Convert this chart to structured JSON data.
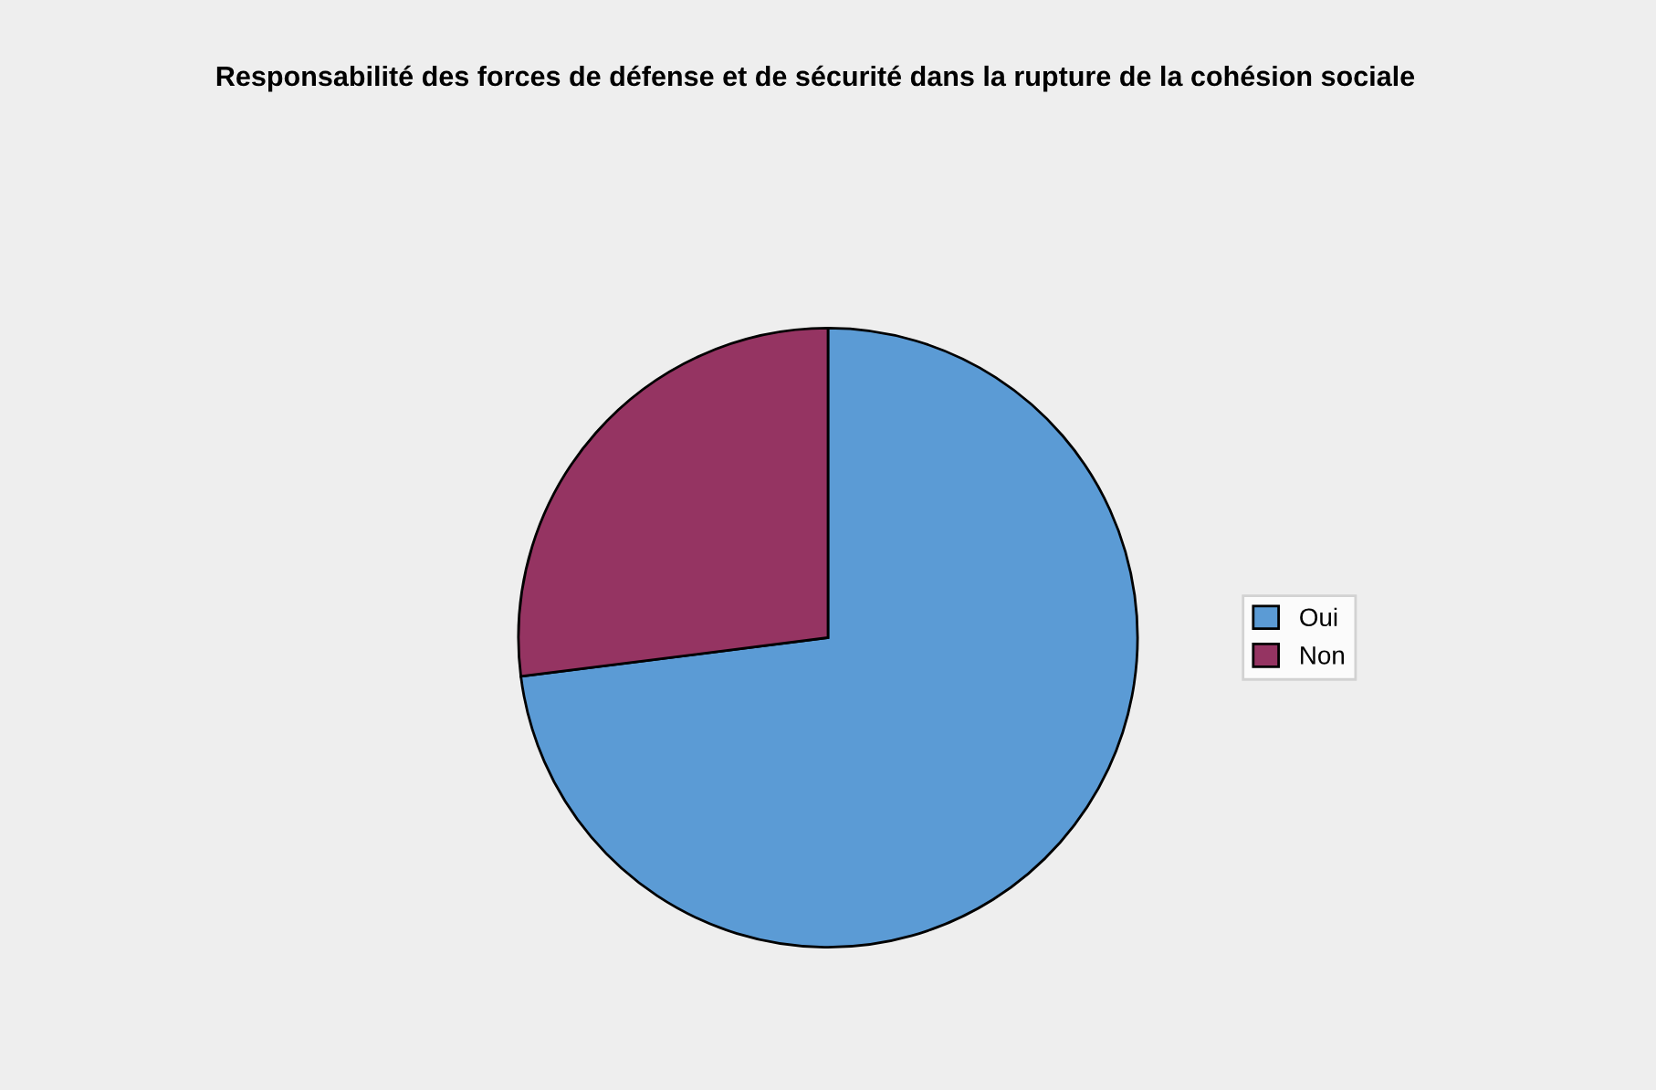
{
  "chart_data": {
    "type": "pie",
    "title": "Responsabilité des forces de défense et de sécurité dans la rupture de la cohésion sociale",
    "categories": [
      "Oui",
      "Non"
    ],
    "values": [
      73,
      27
    ],
    "colors": [
      "#5b9bd5",
      "#953462"
    ],
    "legend": "right"
  }
}
